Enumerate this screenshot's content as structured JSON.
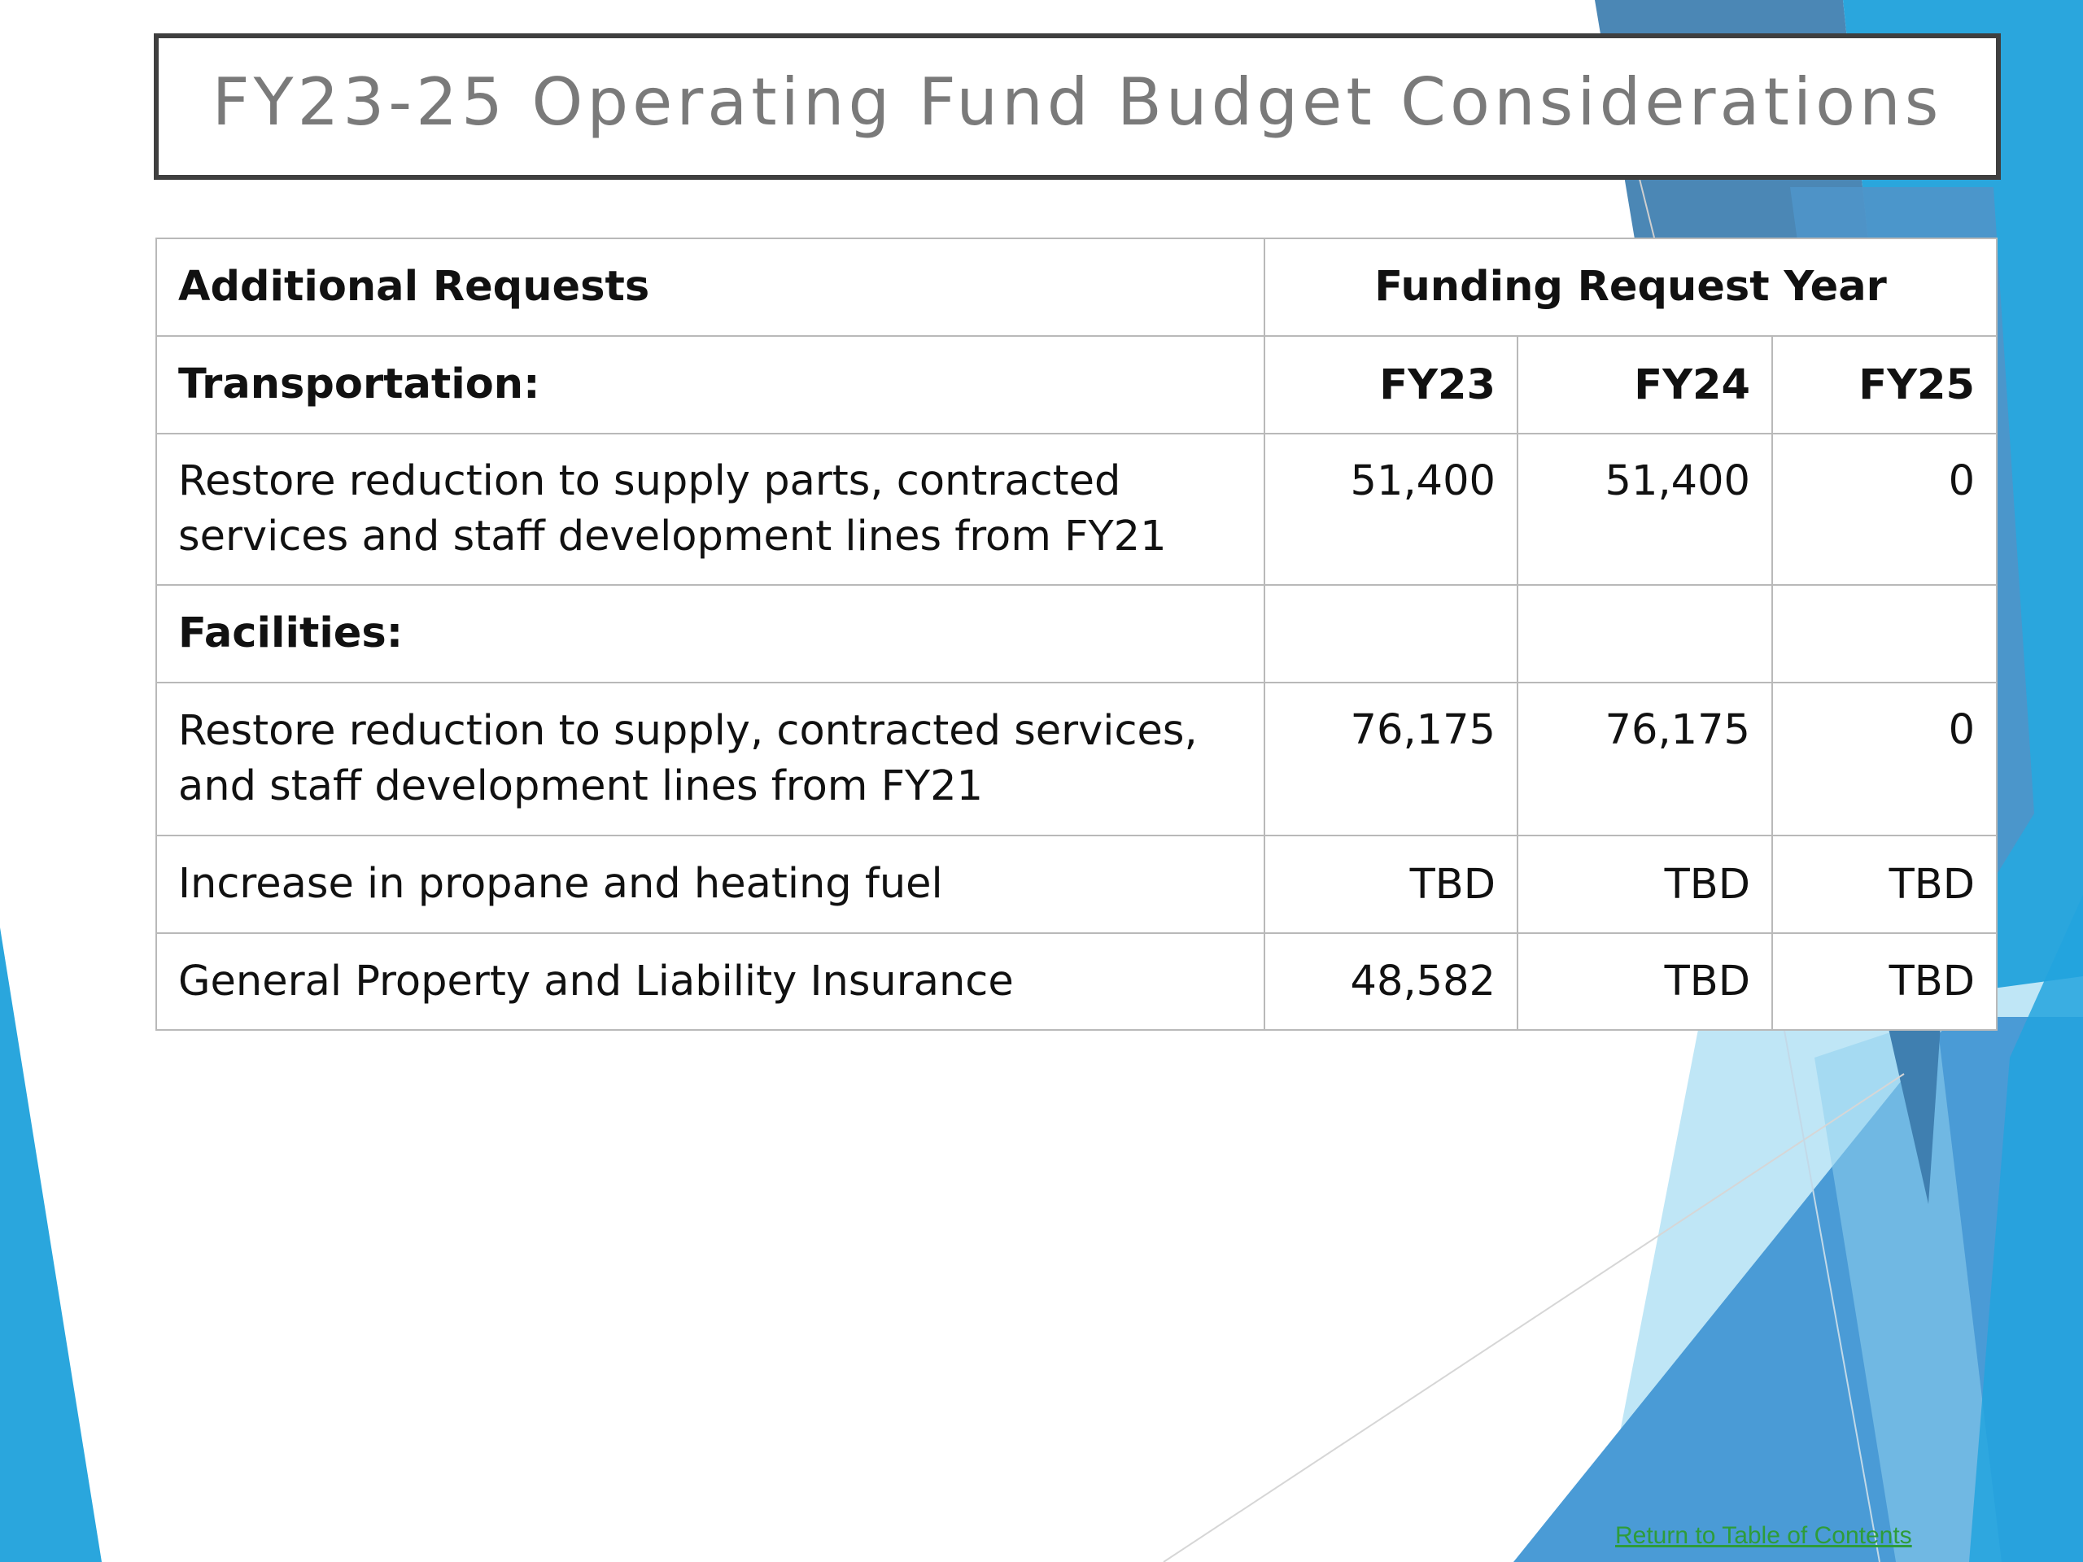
{
  "slide": {
    "title": "FY23-25 Operating Fund Budget Considerations",
    "accent_colors": [
      "#2aa6dd",
      "#5aa2d6",
      "#bfe6f6",
      "#4b87b5"
    ]
  },
  "table": {
    "header": {
      "requests_label": "Additional Requests",
      "funding_label": "Funding Request Year"
    },
    "section_transportation": {
      "label": "Transportation:",
      "years": [
        "FY23",
        "FY24",
        "FY25"
      ]
    },
    "rows": [
      {
        "description": "Restore reduction to supply parts, contracted services and staff development lines from FY21",
        "fy23": "51,400",
        "fy24": "51,400",
        "fy25": "0"
      },
      {
        "description": "Restore reduction to supply, contracted services, and staff development lines from FY21",
        "fy23": "76,175",
        "fy24": "76,175",
        "fy25": "0"
      },
      {
        "description": "Increase in propane and heating fuel",
        "fy23": "TBD",
        "fy24": "TBD",
        "fy25": "TBD"
      },
      {
        "description": "General Property and Liability Insurance",
        "fy23": "48,582",
        "fy24": "TBD",
        "fy25": "TBD"
      }
    ],
    "section_facilities": {
      "label": "Facilities:"
    }
  },
  "footer": {
    "link_label": "Return to Table of Contents"
  }
}
